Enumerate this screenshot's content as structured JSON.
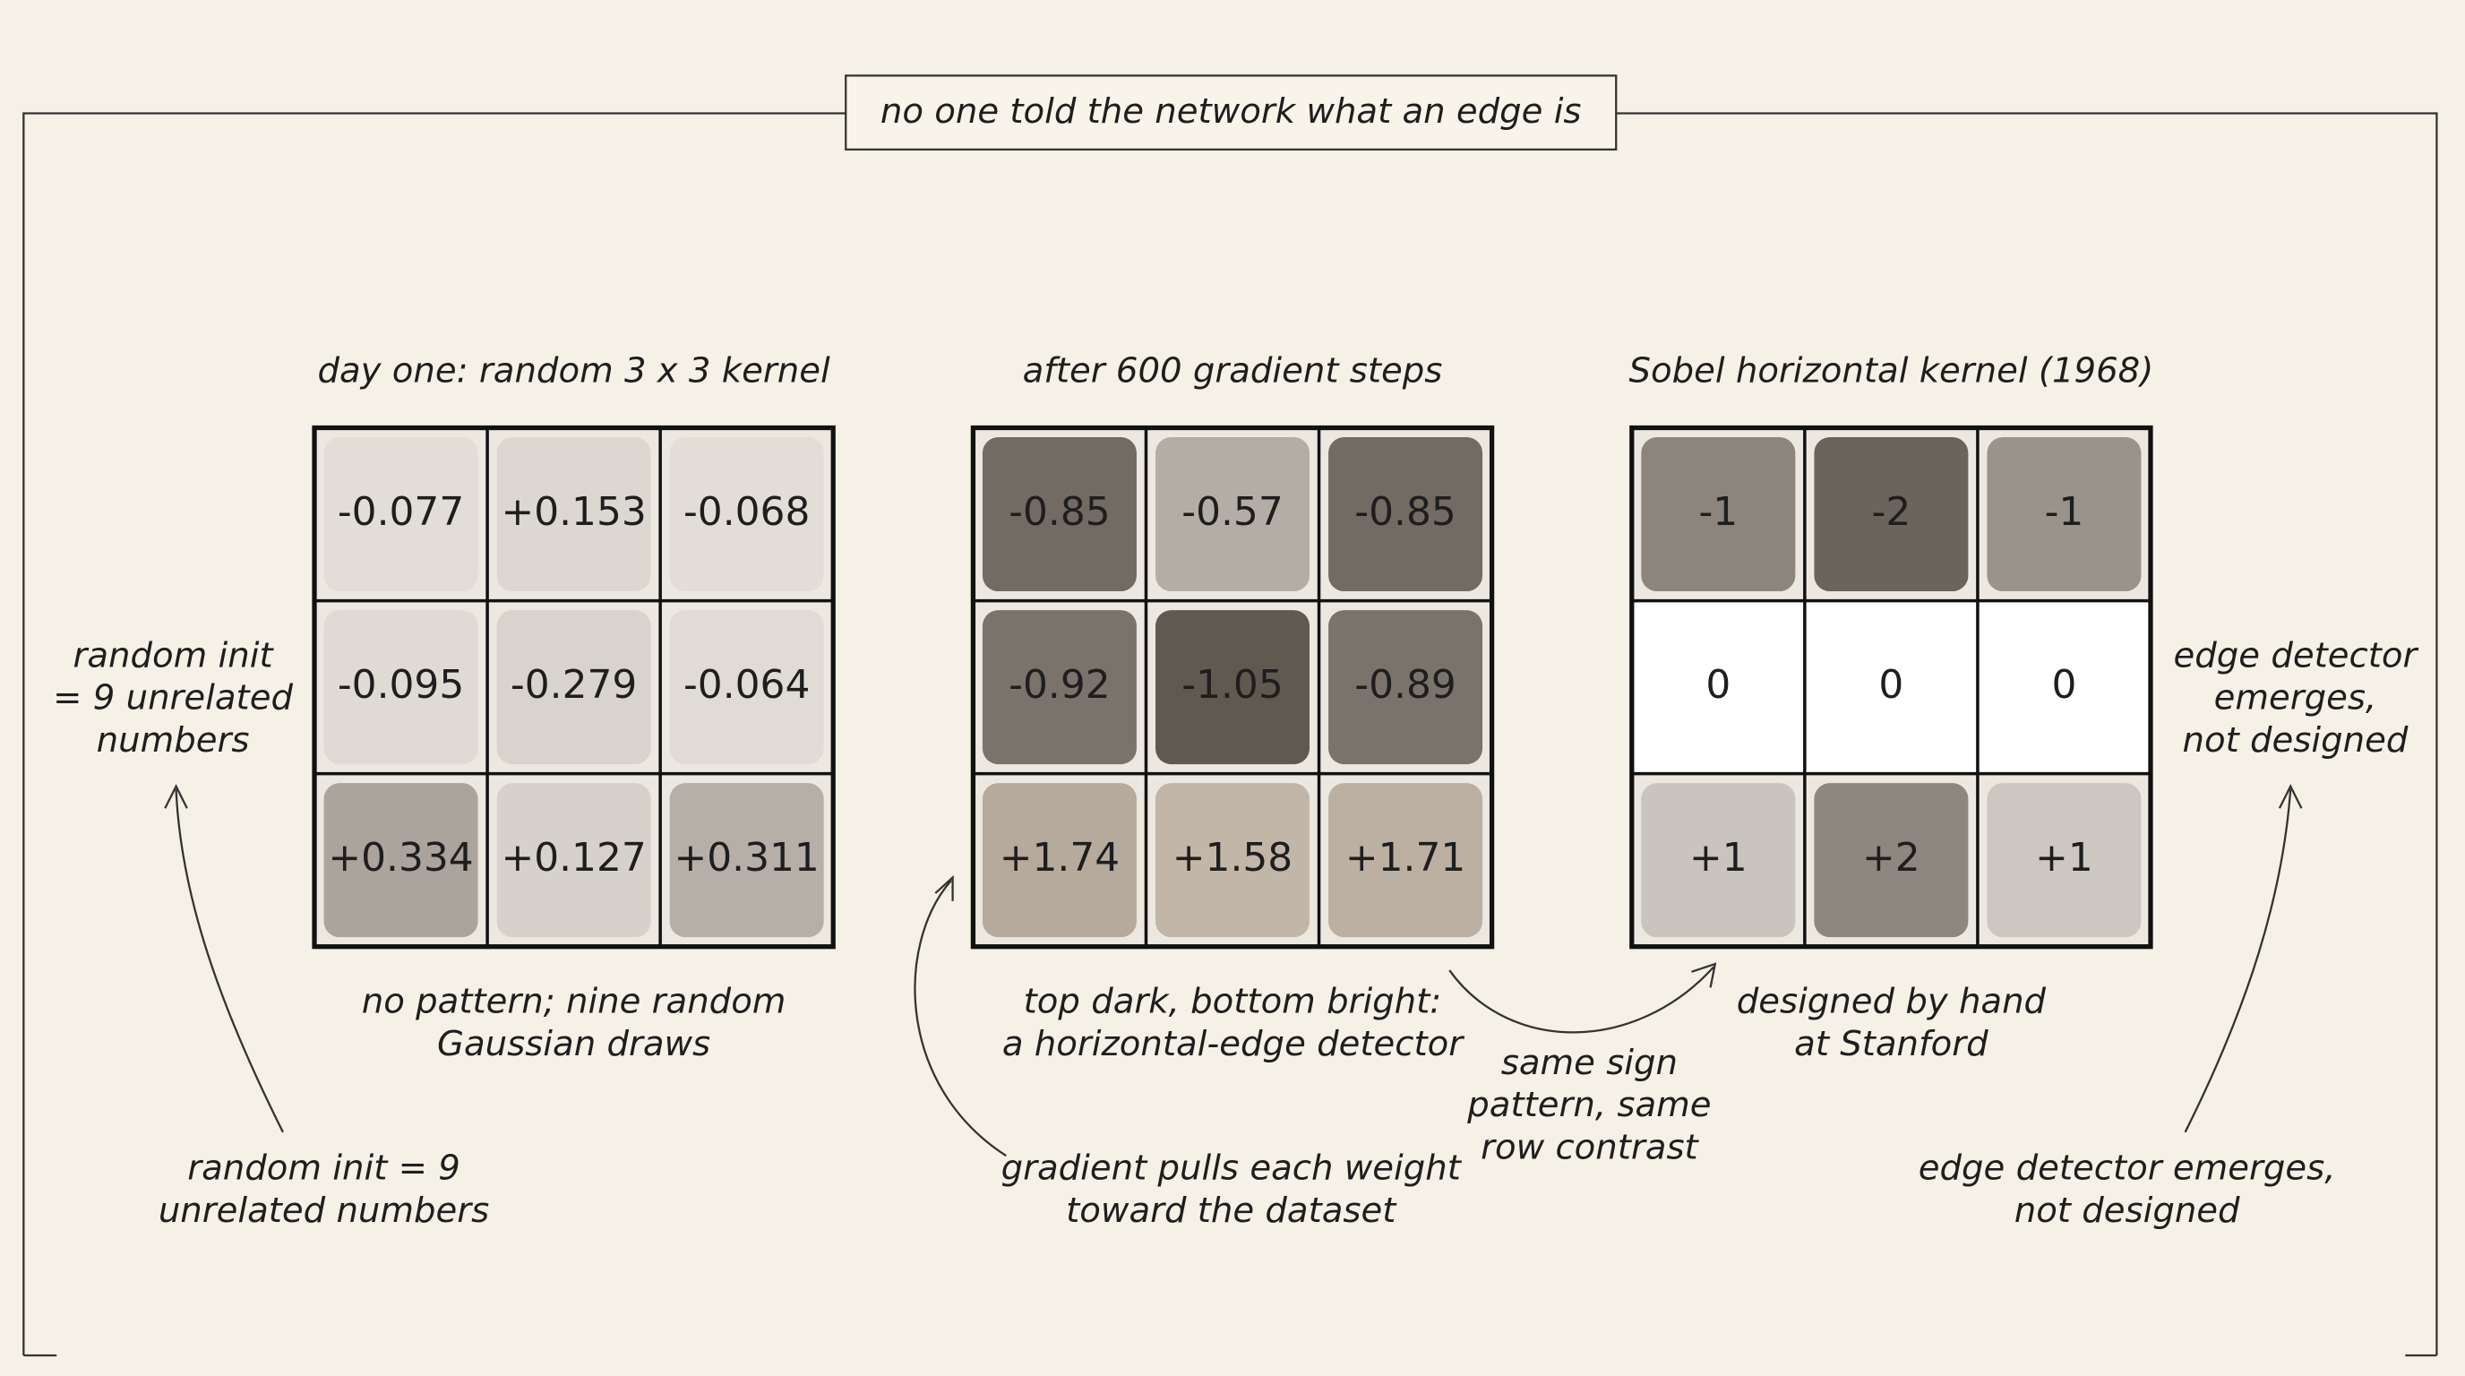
{
  "title": "no one told the network what an edge is",
  "panels": [
    {
      "heading": "day one: random 3 x 3 kernel",
      "cells": [
        [
          "-0.077",
          "+0.153",
          "-0.068"
        ],
        [
          "-0.095",
          "-0.279",
          "-0.064"
        ],
        [
          "+0.334",
          "+0.127",
          "+0.311"
        ]
      ],
      "caption": [
        "no pattern; nine random",
        "Gaussian draws"
      ]
    },
    {
      "heading": "after 600 gradient steps",
      "cells": [
        [
          "-0.85",
          "-0.57",
          "-0.85"
        ],
        [
          "-0.92",
          "-1.05",
          "-0.89"
        ],
        [
          "+1.74",
          "+1.58",
          "+1.71"
        ]
      ],
      "caption": [
        "top dark, bottom bright:",
        "a horizontal-edge detector"
      ]
    },
    {
      "heading": "Sobel horizontal kernel (1968)",
      "cells": [
        [
          "-1",
          "-2",
          "-1"
        ],
        [
          "0",
          "0",
          "0"
        ],
        [
          "+1",
          "+2",
          "+1"
        ]
      ],
      "caption": [
        "designed by hand",
        "at Stanford"
      ]
    }
  ],
  "middle_note": [
    "same sign",
    "pattern, same",
    "row contrast"
  ],
  "side_notes": {
    "left": [
      "random init",
      "= 9 unrelated",
      "numbers"
    ],
    "right": [
      "edge detector",
      "emerges,",
      "not designed"
    ]
  },
  "bottom_notes": [
    {
      "lines": [
        "random init = 9",
        "unrelated numbers"
      ]
    },
    {
      "lines": [
        "gradient pulls each weight",
        "toward the dataset"
      ]
    },
    {
      "lines": [
        "edge detector emerges,",
        "not designed"
      ]
    }
  ]
}
